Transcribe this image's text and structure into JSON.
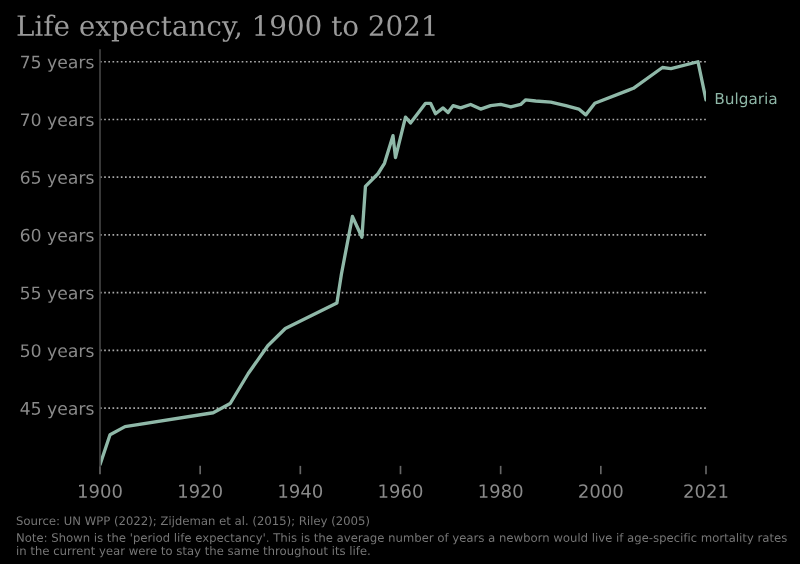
{
  "chart_data": {
    "type": "line",
    "title": "Life expectancy, 1900 to 2021",
    "x": [
      1900,
      1902,
      1905,
      1922.6,
      1926,
      1929.6,
      1933.5,
      1937,
      1947.3,
      1948.2,
      1950.4,
      1952.3,
      1953,
      1955.5,
      1956.8,
      1958.5,
      1959,
      1961,
      1962,
      1965,
      1966,
      1967,
      1968.5,
      1969.5,
      1970.5,
      1972,
      1974,
      1976,
      1978,
      1980,
      1982,
      1984,
      1985,
      1987,
      1990,
      1993,
      1995.6,
      1997,
      1998.8,
      2005.3,
      2006.5,
      2012.3,
      2014,
      2019.4,
      2021
    ],
    "series": [
      {
        "name": "Bulgaria",
        "color": "#8fb8a8",
        "values": [
          40.1,
          42.7,
          43.4,
          44.6,
          45.4,
          48.0,
          50.4,
          51.9,
          54.1,
          56.6,
          61.6,
          59.8,
          64.2,
          65.3,
          66.2,
          68.6,
          66.7,
          70.2,
          69.7,
          71.4,
          71.4,
          70.5,
          71.0,
          70.6,
          71.2,
          71.0,
          71.3,
          70.9,
          71.2,
          71.3,
          71.1,
          71.3,
          71.7,
          71.6,
          71.5,
          71.2,
          70.9,
          70.4,
          71.4,
          72.5,
          72.7,
          74.5,
          74.4,
          75.0,
          71.7
        ]
      }
    ],
    "xlim": [
      1900,
      2021
    ],
    "xticks": [
      1900,
      1920,
      1940,
      1960,
      1980,
      2000,
      2021
    ],
    "ylim": [
      40,
      76
    ],
    "yticks": [
      {
        "value": 45,
        "label": "45 years"
      },
      {
        "value": 50,
        "label": "50 years"
      },
      {
        "value": 55,
        "label": "55 years"
      },
      {
        "value": 60,
        "label": "60 years"
      },
      {
        "value": 65,
        "label": "65 years"
      },
      {
        "value": 70,
        "label": "70 years"
      },
      {
        "value": 75,
        "label": "75 years"
      }
    ],
    "grid": "y",
    "legend": false,
    "annotations": [
      "Source: UN WPP (2022); Zijdeman et al. (2015); Riley (2005)",
      "Note: Shown is the 'period life expectancy'. This is the average number of years a newborn would live if age-specific mortality rates in the current year were to stay the same throughout its life."
    ]
  }
}
